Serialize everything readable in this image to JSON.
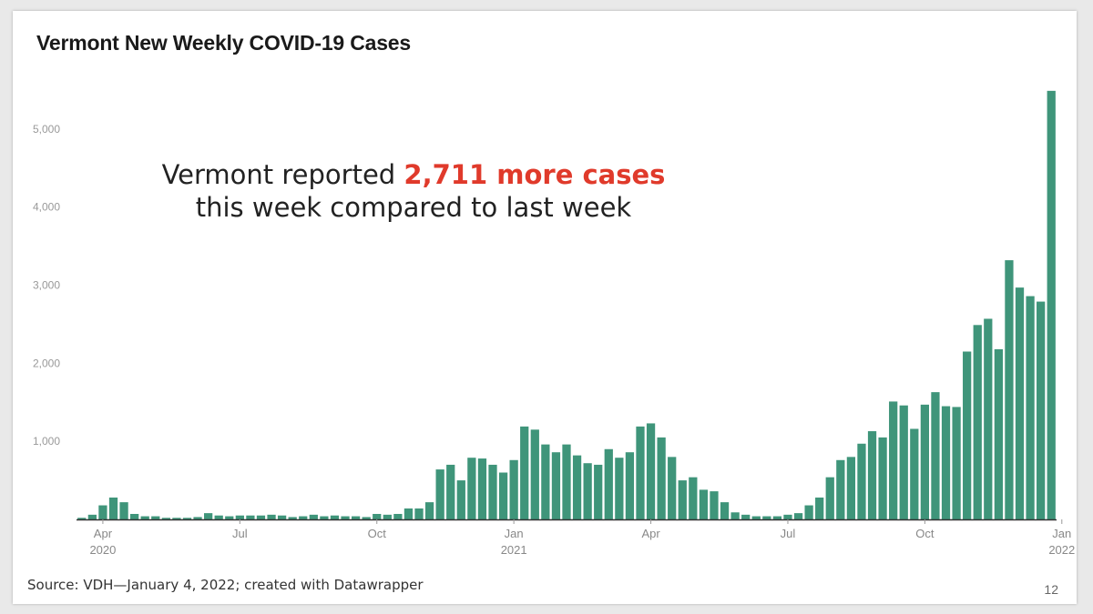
{
  "title": "Vermont New Weekly COVID-19 Cases",
  "annotation": {
    "line1_prefix": "Vermont reported ",
    "highlight": "2,711 more cases",
    "line2": "this week compared to last week"
  },
  "source": "Source: VDH—January 4, 2022; created with Datawrapper",
  "page_number": "12",
  "colors": {
    "bar": "#3f957a",
    "highlight": "#e03a2b",
    "axis": "#333333"
  },
  "chart_data": {
    "type": "bar",
    "title": "Vermont New Weekly COVID-19 Cases",
    "xlabel": "",
    "ylabel": "",
    "ylim": [
      0,
      5500
    ],
    "yticks": [
      {
        "value": 1000,
        "label": "1,000"
      },
      {
        "value": 2000,
        "label": "2,000"
      },
      {
        "value": 3000,
        "label": "3,000"
      },
      {
        "value": 4000,
        "label": "4,000"
      },
      {
        "value": 5000,
        "label": "5,000"
      }
    ],
    "xticks": [
      {
        "index": 2,
        "label": "Apr",
        "sub": "2020"
      },
      {
        "index": 15,
        "label": "Jul",
        "sub": ""
      },
      {
        "index": 28,
        "label": "Oct",
        "sub": ""
      },
      {
        "index": 41,
        "label": "Jan",
        "sub": "2021"
      },
      {
        "index": 54,
        "label": "Apr",
        "sub": ""
      },
      {
        "index": 67,
        "label": "Jul",
        "sub": ""
      },
      {
        "index": 80,
        "label": "Oct",
        "sub": ""
      },
      {
        "index": 93,
        "label": "Jan",
        "sub": "2022"
      }
    ],
    "grid": false,
    "values": [
      20,
      60,
      180,
      280,
      220,
      70,
      40,
      40,
      20,
      20,
      20,
      30,
      80,
      50,
      40,
      50,
      50,
      50,
      60,
      50,
      30,
      40,
      60,
      40,
      50,
      40,
      40,
      30,
      70,
      60,
      70,
      140,
      140,
      220,
      640,
      700,
      500,
      790,
      780,
      700,
      600,
      760,
      1190,
      1150,
      960,
      860,
      960,
      820,
      720,
      700,
      900,
      790,
      860,
      1190,
      1230,
      1050,
      800,
      500,
      540,
      380,
      360,
      220,
      90,
      60,
      40,
      40,
      40,
      60,
      80,
      180,
      280,
      540,
      760,
      800,
      970,
      1130,
      1050,
      1510,
      1460,
      1160,
      1470,
      1630,
      1450,
      1440,
      2150,
      2490,
      2570,
      2180,
      3320,
      2970,
      2860,
      2790,
      5490
    ]
  }
}
